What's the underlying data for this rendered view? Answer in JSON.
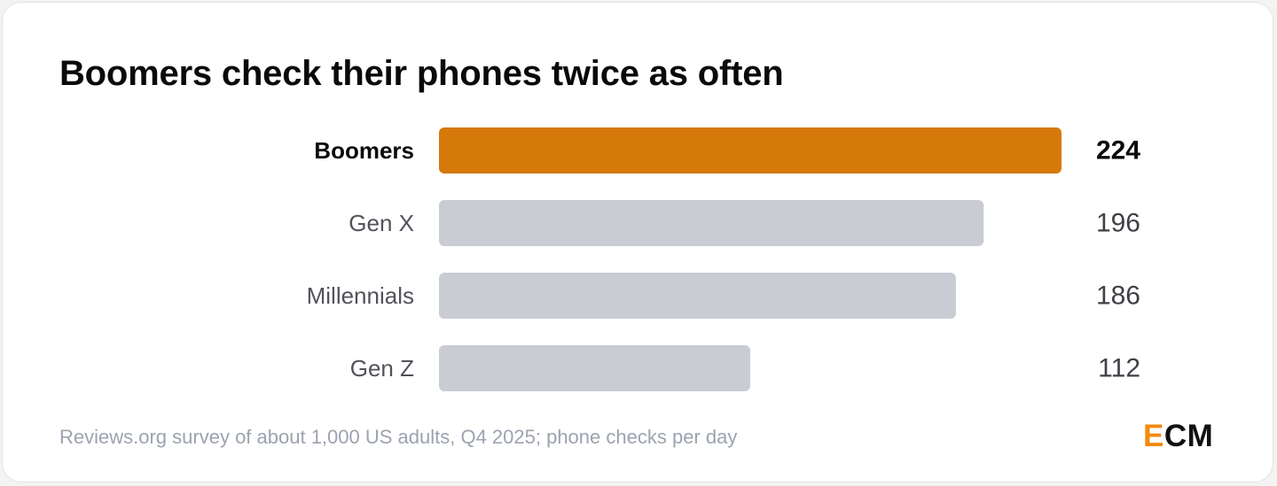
{
  "title": "Boomers check their phones twice as often",
  "footer": "Reviews.org survey of about 1,000 US adults, Q4 2025; phone checks per day",
  "logo": {
    "first": "E",
    "rest": "CM"
  },
  "colors": {
    "highlight": "#d4790a",
    "default_bar": "#c9ccd3",
    "highlight_label": "#0a0a0a",
    "default_label": "#52525b",
    "value_label": "#3f3f46"
  },
  "chart_data": {
    "type": "bar",
    "orientation": "horizontal",
    "categories": [
      "Boomers",
      "Gen X",
      "Millennials",
      "Gen Z"
    ],
    "values": [
      224,
      196,
      186,
      112
    ],
    "highlighted": [
      "Boomers"
    ],
    "title": "Boomers check their phones twice as often",
    "xlabel": "",
    "ylabel": "",
    "xlim": [
      0,
      224
    ],
    "grid": false,
    "legend": "none",
    "data_labels": true
  }
}
